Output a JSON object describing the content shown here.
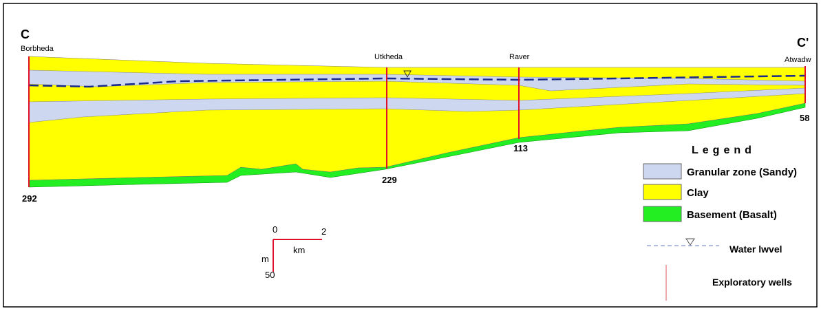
{
  "section": {
    "start_label": "C",
    "end_label": "C'",
    "wells": [
      {
        "name": "Borbheda",
        "depth": 292
      },
      {
        "name": "Utkheda",
        "depth": 229
      },
      {
        "name": "Raver",
        "depth": 113
      },
      {
        "name": "Atwadw",
        "depth": 58
      }
    ]
  },
  "scale": {
    "x_start": "0",
    "x_end": "2",
    "x_unit": "km",
    "y_unit": "m",
    "y_end": "50"
  },
  "legend": {
    "title": "Legend",
    "items": [
      "Granular zone (Sandy)",
      "Clay",
      "Basement (Basalt)",
      "Water lwvel",
      "Exploratory wells"
    ]
  }
}
